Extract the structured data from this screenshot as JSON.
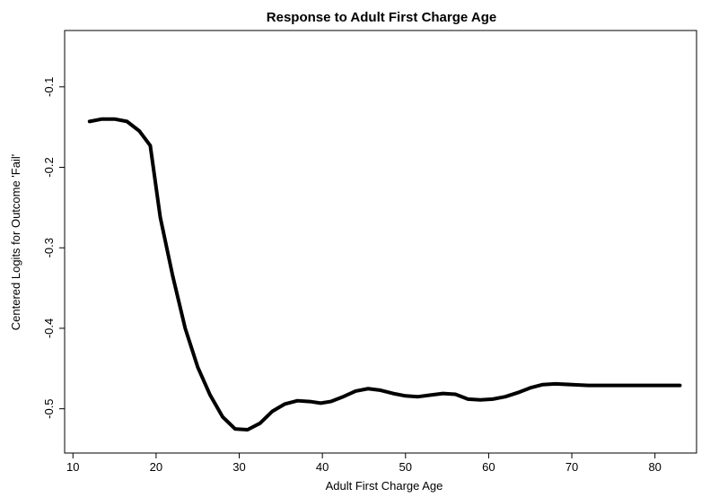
{
  "chart_data": {
    "type": "line",
    "title": "Response to Adult First Charge Age",
    "xlabel": "Adult First Charge Age",
    "ylabel": "Centered Logits for Outcome 'Fail'",
    "xlim": [
      9,
      85
    ],
    "ylim": [
      -0.555,
      -0.03
    ],
    "x_ticks": [
      10,
      20,
      30,
      40,
      50,
      60,
      70,
      80
    ],
    "y_ticks": [
      -0.5,
      -0.4,
      -0.3,
      -0.2,
      -0.1
    ],
    "x_tick_labels": [
      "10",
      "20",
      "30",
      "40",
      "50",
      "60",
      "70",
      "80"
    ],
    "y_tick_labels": [
      "-0.5",
      "-0.4",
      "-0.3",
      "-0.2",
      "-0.1"
    ],
    "grid": false,
    "series": [
      {
        "color": "#000000",
        "x": [
          12,
          13.5,
          15,
          16.5,
          18,
          19.3,
          20.5,
          22,
          23.5,
          25,
          26.5,
          28,
          29.5,
          31,
          32.5,
          34,
          35.5,
          37,
          38.5,
          39.8,
          41,
          42.5,
          44,
          45.5,
          47,
          48.5,
          50,
          51.5,
          53,
          54.5,
          56,
          57.5,
          59,
          60.5,
          62,
          63.5,
          65,
          66.5,
          68,
          70,
          72,
          75,
          78,
          80,
          83
        ],
        "y": [
          -0.143,
          -0.14,
          -0.14,
          -0.143,
          -0.155,
          -0.173,
          -0.262,
          -0.335,
          -0.4,
          -0.448,
          -0.483,
          -0.51,
          -0.525,
          -0.526,
          -0.518,
          -0.503,
          -0.494,
          -0.49,
          -0.491,
          -0.493,
          -0.491,
          -0.485,
          -0.478,
          -0.475,
          -0.477,
          -0.481,
          -0.484,
          -0.485,
          -0.483,
          -0.481,
          -0.482,
          -0.488,
          -0.489,
          -0.488,
          -0.485,
          -0.48,
          -0.474,
          -0.47,
          -0.469,
          -0.47,
          -0.471,
          -0.471,
          -0.471,
          -0.471,
          -0.471
        ]
      }
    ]
  }
}
